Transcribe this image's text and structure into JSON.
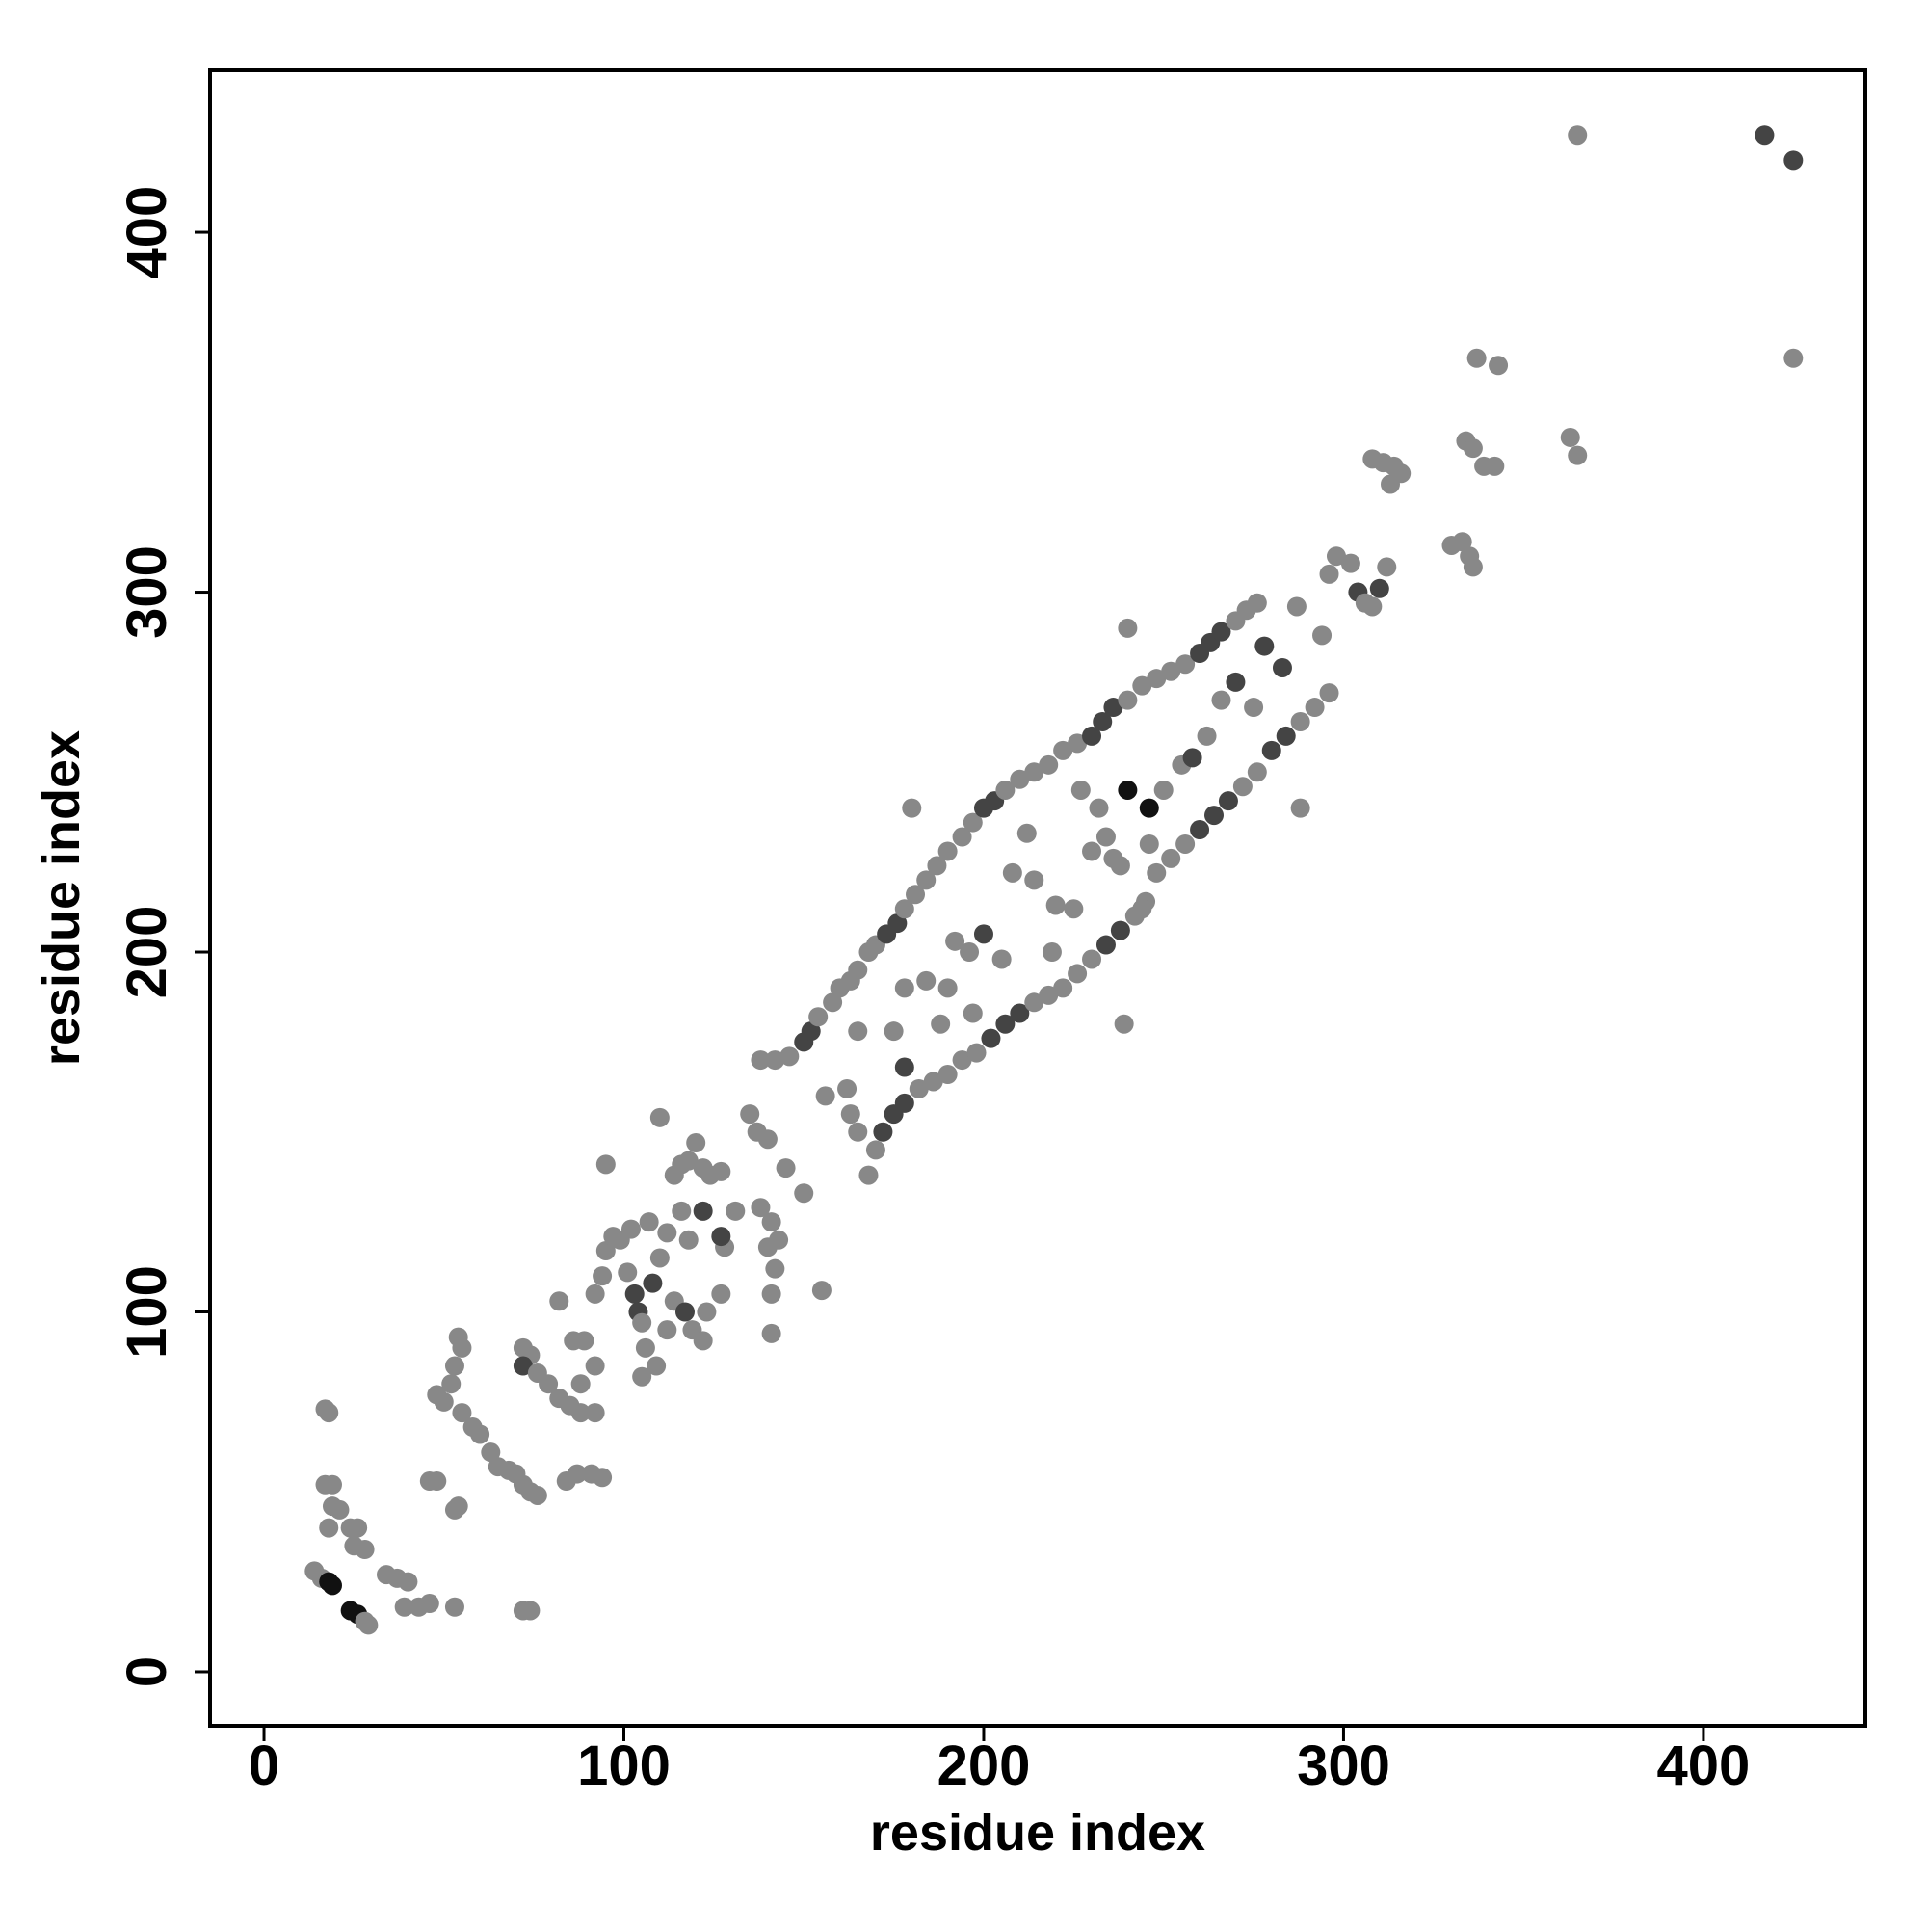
{
  "chart_data": {
    "type": "scatter",
    "x_label": "residue index",
    "y_label": "residue index",
    "xlim": [
      -15,
      445
    ],
    "ylim": [
      -15,
      445
    ],
    "xticks": [
      0,
      100,
      200,
      300,
      400
    ],
    "yticks": [
      0,
      100,
      200,
      300,
      400
    ],
    "x": [
      14,
      16,
      18,
      19,
      17,
      18,
      17,
      19,
      18,
      19,
      21,
      24,
      26,
      25,
      28,
      24,
      26,
      28,
      29,
      34,
      37,
      40,
      39,
      43,
      46,
      46,
      48,
      53,
      54,
      53,
      54,
      55,
      53,
      52,
      48,
      50,
      55,
      58,
      60,
      63,
      65,
      68,
      70,
      72,
      74,
      76,
      72,
      74,
      72,
      74,
      72,
      76,
      79,
      82,
      85,
      88,
      92,
      84,
      87,
      91,
      94,
      82,
      86,
      89,
      88,
      92,
      92,
      94,
      95,
      97,
      99,
      101,
      103,
      104,
      95,
      102,
      107,
      110,
      108,
      105,
      106,
      109,
      105,
      112,
      114,
      116,
      118,
      120,
      122,
      124,
      116,
      118,
      110,
      114,
      117,
      112,
      119,
      122,
      123,
      127,
      128,
      131,
      127,
      122,
      127,
      135,
      137,
      140,
      138,
      141,
      140,
      142,
      141,
      143,
      145,
      150,
      155,
      141,
      138,
      142,
      146,
      150,
      152,
      154,
      156,
      158,
      160,
      163,
      165,
      168,
      170,
      173,
      176,
      178,
      181,
      184,
      187,
      190,
      194,
      197,
      200,
      203,
      206,
      210,
      214,
      218,
      222,
      226,
      230,
      233,
      236,
      240,
      244,
      248,
      252,
      256,
      260,
      263,
      266,
      270,
      273,
      276,
      240,
      180,
      162,
      163,
      165,
      168,
      170,
      172,
      175,
      178,
      182,
      186,
      190,
      194,
      198,
      202,
      206,
      210,
      214,
      218,
      222,
      226,
      230,
      234,
      238,
      242,
      245,
      248,
      252,
      256,
      260,
      264,
      268,
      272,
      276,
      280,
      284,
      288,
      292,
      296,
      239,
      288,
      240,
      246,
      178,
      175,
      184,
      188,
      196,
      200,
      205,
      208,
      214,
      220,
      225,
      230,
      234,
      238,
      244,
      250,
      255,
      258,
      262,
      266,
      270,
      275,
      278,
      283,
      287,
      294,
      219,
      212,
      227,
      232,
      236,
      246,
      192,
      197,
      190,
      178,
      165,
      296,
      298,
      302,
      304,
      306,
      308,
      310,
      312,
      308,
      311,
      314,
      316,
      313,
      330,
      333,
      335,
      336,
      334,
      336,
      337,
      339,
      342,
      343,
      363,
      365,
      365,
      417,
      425,
      425
    ],
    "values": [
      28,
      26,
      25,
      24,
      73,
      72,
      52,
      52,
      40,
      46,
      45,
      40,
      40,
      35,
      34,
      17,
      16,
      14,
      13,
      27,
      26,
      25,
      18,
      18,
      19,
      53,
      53,
      45,
      46,
      18,
      93,
      90,
      85,
      80,
      77,
      75,
      72,
      68,
      66,
      61,
      57,
      56,
      55,
      52,
      50,
      49,
      17,
      17,
      90,
      88,
      85,
      83,
      80,
      76,
      74,
      72,
      72,
      53,
      55,
      55,
      54,
      103,
      92,
      92,
      80,
      85,
      105,
      110,
      117,
      121,
      120,
      111,
      105,
      100,
      141,
      123,
      125,
      115,
      108,
      97,
      90,
      85,
      82,
      122,
      138,
      141,
      142,
      147,
      140,
      138,
      128,
      120,
      154,
      103,
      100,
      95,
      95,
      92,
      100,
      105,
      118,
      128,
      139,
      128,
      121,
      155,
      150,
      148,
      129,
      125,
      118,
      112,
      105,
      120,
      140,
      133,
      106,
      94,
      170,
      170,
      171,
      175,
      178,
      182,
      160,
      186,
      190,
      192,
      195,
      200,
      202,
      205,
      208,
      212,
      216,
      220,
      224,
      228,
      232,
      236,
      240,
      242,
      245,
      248,
      250,
      252,
      256,
      258,
      260,
      264,
      268,
      270,
      274,
      276,
      278,
      280,
      283,
      286,
      289,
      292,
      295,
      297,
      290,
      240,
      162,
      155,
      150,
      138,
      145,
      150,
      155,
      158,
      162,
      164,
      166,
      170,
      172,
      176,
      180,
      183,
      186,
      188,
      190,
      194,
      198,
      202,
      206,
      210,
      214,
      222,
      226,
      230,
      234,
      238,
      242,
      246,
      250,
      256,
      260,
      264,
      268,
      272,
      180,
      240,
      245,
      240,
      168,
      178,
      192,
      180,
      200,
      205,
      198,
      222,
      220,
      213,
      212,
      228,
      232,
      224,
      212,
      245,
      252,
      254,
      260,
      270,
      275,
      268,
      285,
      279,
      296,
      288,
      200,
      233,
      245,
      240,
      226,
      230,
      203,
      183,
      190,
      190,
      178,
      305,
      310,
      308,
      300,
      297,
      296,
      301,
      307,
      337,
      336,
      335,
      333,
      330,
      313,
      314,
      310,
      307,
      342,
      340,
      365,
      335,
      335,
      363,
      343,
      338,
      427,
      427,
      420,
      365
    ],
    "colors": [
      "#888888",
      "#888888",
      "#111111",
      "#111111",
      "#888888",
      "#888888",
      "#888888",
      "#888888",
      "#888888",
      "#888888",
      "#888888",
      "#888888",
      "#888888",
      "#888888",
      "#888888",
      "#111111",
      "#111111",
      "#888888",
      "#888888",
      "#888888",
      "#888888",
      "#888888",
      "#888888",
      "#888888",
      "#888888",
      "#888888",
      "#888888",
      "#888888",
      "#888888",
      "#888888",
      "#888888",
      "#888888",
      "#888888",
      "#888888",
      "#888888",
      "#888888",
      "#888888",
      "#888888",
      "#888888",
      "#888888",
      "#888888",
      "#888888",
      "#888888",
      "#888888",
      "#888888",
      "#888888",
      "#888888",
      "#888888",
      "#888888",
      "#888888",
      "#444444",
      "#888888",
      "#888888",
      "#888888",
      "#888888",
      "#888888",
      "#888888",
      "#888888",
      "#888888",
      "#888888",
      "#888888",
      "#888888",
      "#888888",
      "#888888",
      "#888888",
      "#888888",
      "#888888",
      "#888888",
      "#888888",
      "#888888",
      "#888888",
      "#888888",
      "#444444",
      "#444444",
      "#888888",
      "#888888",
      "#888888",
      "#888888",
      "#444444",
      "#888888",
      "#888888",
      "#888888",
      "#888888",
      "#888888",
      "#888888",
      "#888888",
      "#888888",
      "#888888",
      "#888888",
      "#888888",
      "#888888",
      "#888888",
      "#888888",
      "#888888",
      "#444444",
      "#888888",
      "#888888",
      "#888888",
      "#888888",
      "#888888",
      "#888888",
      "#888888",
      "#888888",
      "#444444",
      "#444444",
      "#888888",
      "#888888",
      "#888888",
      "#888888",
      "#888888",
      "#888888",
      "#888888",
      "#888888",
      "#888888",
      "#888888",
      "#888888",
      "#888888",
      "#888888",
      "#888888",
      "#888888",
      "#888888",
      "#444444",
      "#444444",
      "#888888",
      "#888888",
      "#888888",
      "#888888",
      "#888888",
      "#888888",
      "#888888",
      "#888888",
      "#444444",
      "#444444",
      "#888888",
      "#888888",
      "#888888",
      "#888888",
      "#888888",
      "#888888",
      "#888888",
      "#444444",
      "#444444",
      "#888888",
      "#888888",
      "#888888",
      "#888888",
      "#888888",
      "#888888",
      "#444444",
      "#444444",
      "#444444",
      "#888888",
      "#888888",
      "#888888",
      "#888888",
      "#888888",
      "#444444",
      "#444444",
      "#444444",
      "#888888",
      "#888888",
      "#888888",
      "#888888",
      "#888888",
      "#888888",
      "#888888",
      "#888888",
      "#888888",
      "#888888",
      "#444444",
      "#444444",
      "#444444",
      "#888888",
      "#888888",
      "#888888",
      "#888888",
      "#888888",
      "#444444",
      "#444444",
      "#444444",
      "#888888",
      "#888888",
      "#888888",
      "#888888",
      "#888888",
      "#444444",
      "#444444",
      "#888888",
      "#888888",
      "#888888",
      "#888888",
      "#888888",
      "#444444",
      "#444444",
      "#444444",
      "#888888",
      "#888888",
      "#444444",
      "#444444",
      "#888888",
      "#888888",
      "#888888",
      "#888888",
      "#888888",
      "#111111",
      "#111111",
      "#444444",
      "#888888",
      "#888888",
      "#888888",
      "#888888",
      "#444444",
      "#888888",
      "#888888",
      "#888888",
      "#888888",
      "#888888",
      "#888888",
      "#888888",
      "#888888",
      "#888888",
      "#888888",
      "#888888",
      "#444444",
      "#888888",
      "#888888",
      "#444444",
      "#888888",
      "#444444",
      "#444444",
      "#888888",
      "#888888",
      "#888888",
      "#888888",
      "#888888",
      "#888888",
      "#888888",
      "#888888",
      "#888888",
      "#888888",
      "#888888",
      "#888888",
      "#888888",
      "#888888",
      "#888888",
      "#888888",
      "#444444",
      "#888888",
      "#888888",
      "#444444",
      "#888888",
      "#888888",
      "#888888",
      "#888888",
      "#888888",
      "#888888",
      "#888888",
      "#888888",
      "#888888",
      "#888888",
      "#888888",
      "#888888",
      "#888888",
      "#888888",
      "#888888",
      "#888888",
      "#888888",
      "#888888",
      "#888888",
      "#444444",
      "#444444",
      "#888888"
    ]
  }
}
